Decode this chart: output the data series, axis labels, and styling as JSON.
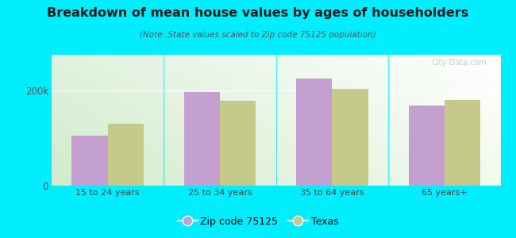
{
  "title": "Breakdown of mean house values by ages of householders",
  "subtitle": "(Note: State values scaled to Zip code 75125 population)",
  "categories": [
    "15 to 24 years",
    "25 to 34 years",
    "35 to 64 years",
    "65 years+"
  ],
  "zip_values": [
    105000,
    197000,
    225000,
    168000
  ],
  "texas_values": [
    130000,
    178000,
    203000,
    180000
  ],
  "zip_color": "#c4a0d0",
  "texas_color": "#c5c98a",
  "background_color": "#00eeff",
  "ylim": [
    0,
    250000
  ],
  "yticks": [
    0,
    200000
  ],
  "ytick_labels": [
    "0",
    "200k"
  ],
  "legend_zip_label": "Zip code 75125",
  "legend_texas_label": "Texas",
  "bar_width": 0.32
}
